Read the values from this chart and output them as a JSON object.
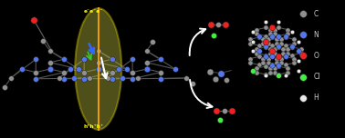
{
  "bg_color": "#000000",
  "figsize": [
    3.78,
    1.52
  ],
  "dpi": 100,
  "legend_items": [
    {
      "label": "C",
      "color": "#909090"
    },
    {
      "label": "N",
      "color": "#5577ee"
    },
    {
      "label": "O",
      "color": "#ee2222"
    },
    {
      "label": "Cl",
      "color": "#44ee44"
    },
    {
      "label": "H",
      "color": "#e8e8e8"
    }
  ],
  "gray": "#909090",
  "blue": "#5577ee",
  "red_c": "#ee2222",
  "green_c": "#44ee44",
  "white_c": "#e8e8e8",
  "ellipse_color": "#c8c840",
  "ellipse_alpha": 0.4,
  "orange_color": "#ffa500",
  "yellow_color": "#ffff00"
}
